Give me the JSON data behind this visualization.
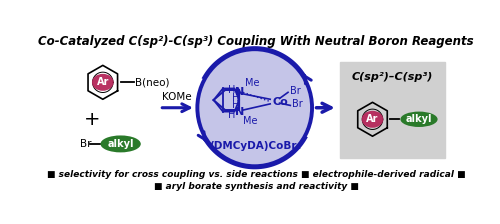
{
  "title": "Co-Catalyzed C(sp²)-C(sp³) Coupling With Neutral Boron Reagents",
  "title_fontsize": 8.5,
  "bg_color": "#ffffff",
  "ellipse_facecolor": "#c5c5e8",
  "ellipse_edgecolor": "#1a1aaa",
  "ellipse_lw": 2.8,
  "dark_blue": "#1a1aaa",
  "pink_color": "#b5275a",
  "green_color": "#2a7a2a",
  "black": "#000000",
  "bullet_line1": "■ selectivity for cross coupling vs. side reactions ■ electrophile-derived radical ■",
  "bullet_line2": "■ aryl borate synthesis and reactivity ■",
  "bullet_fontsize": 6.5,
  "cobalt_label": "(DMCyDA)CoBr₂",
  "koMe_label": "KOMe",
  "product_title": "C(sp²)–C(sp³)",
  "ar_label": "Ar",
  "alkyl_label": "alkyl",
  "bneo_label": "B(neo)",
  "br_label": "Br",
  "product_box_color": "#d0d0d0"
}
